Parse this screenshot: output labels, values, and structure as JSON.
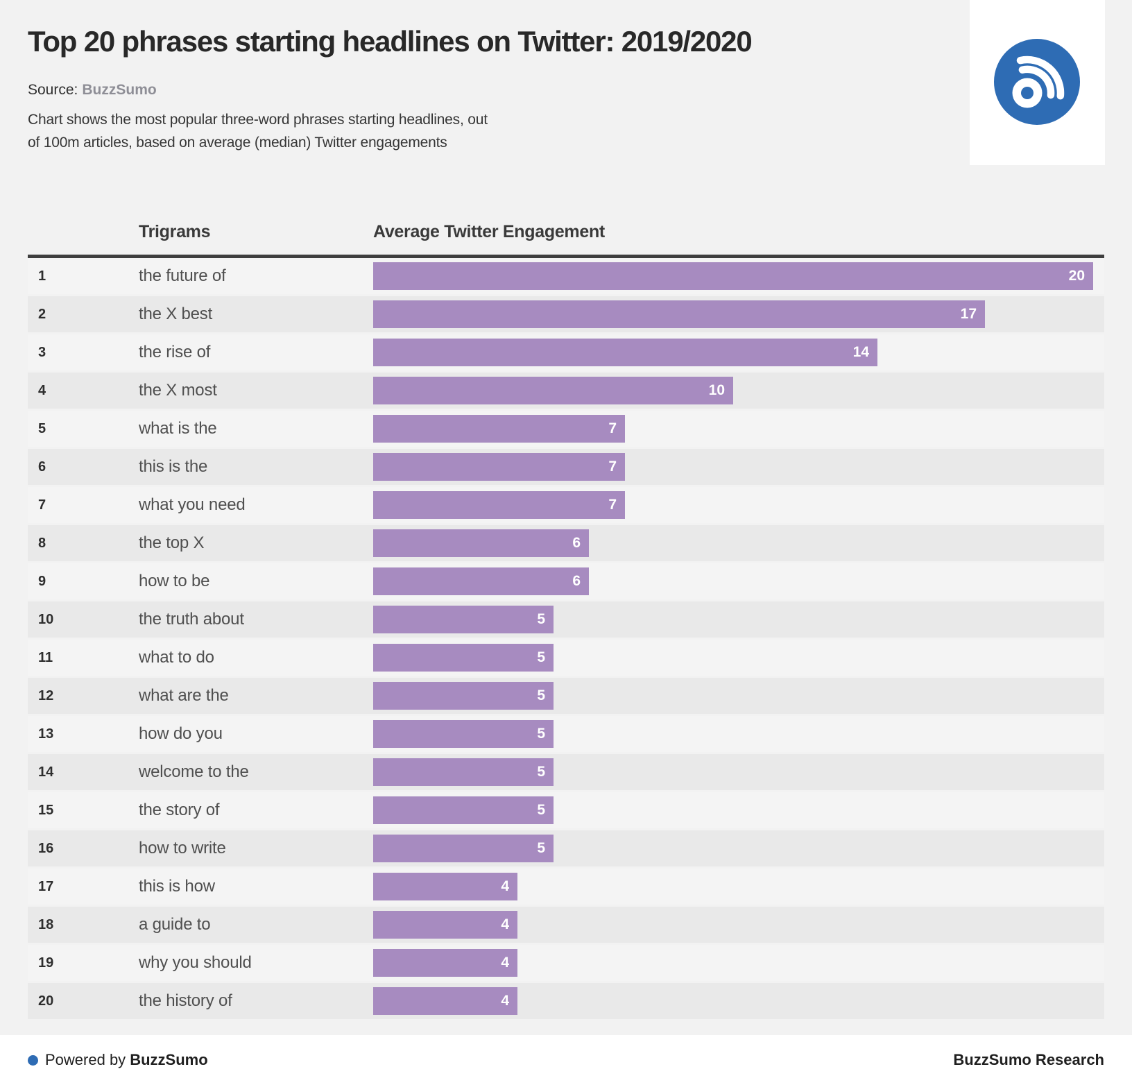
{
  "header": {
    "title": "Top 20 phrases starting headlines on Twitter: 2019/2020",
    "source_label": "Source:",
    "source_name": "BuzzSumo",
    "description_line1": "Chart shows the most popular three-word phrases starting headlines, out",
    "description_line2": "of 100m articles, based on average (median) Twitter engagements"
  },
  "table": {
    "col_trigrams": "Trigrams",
    "col_engagement": "Average Twitter Engagement"
  },
  "chart_data": {
    "type": "bar",
    "orientation": "horizontal",
    "title": "Top 20 phrases starting headlines on Twitter: 2019/2020",
    "xlabel": "Average Twitter Engagement",
    "ylabel": "Trigrams",
    "xlim": [
      0,
      20
    ],
    "grid": false,
    "legend": "none",
    "bar_color": "#a78bc0",
    "ranks": [
      1,
      2,
      3,
      4,
      5,
      6,
      7,
      8,
      9,
      10,
      11,
      12,
      13,
      14,
      15,
      16,
      17,
      18,
      19,
      20
    ],
    "categories": [
      "the future of",
      "the X best",
      "the rise of",
      "the X most",
      "what is the",
      "this is the",
      "what you need",
      "the top X",
      "how to be",
      "the truth about",
      "what to do",
      "what are the",
      "how do you",
      "welcome to the",
      "the story of",
      "how to write",
      "this is how",
      "a guide to",
      "why you should",
      "the history of"
    ],
    "values": [
      20,
      17,
      14,
      10,
      7,
      7,
      7,
      6,
      6,
      5,
      5,
      5,
      5,
      5,
      5,
      5,
      4,
      4,
      4,
      4
    ]
  },
  "footer": {
    "powered_prefix": "Powered by",
    "powered_brand": "BuzzSumo",
    "research_label": "BuzzSumo Research"
  },
  "colors": {
    "accent_blue": "#2e6cb4",
    "bar_purple": "#a78bc0",
    "row_odd": "#f4f4f4",
    "row_even": "#e9e9e9",
    "header_rule": "#3e3e3e"
  }
}
